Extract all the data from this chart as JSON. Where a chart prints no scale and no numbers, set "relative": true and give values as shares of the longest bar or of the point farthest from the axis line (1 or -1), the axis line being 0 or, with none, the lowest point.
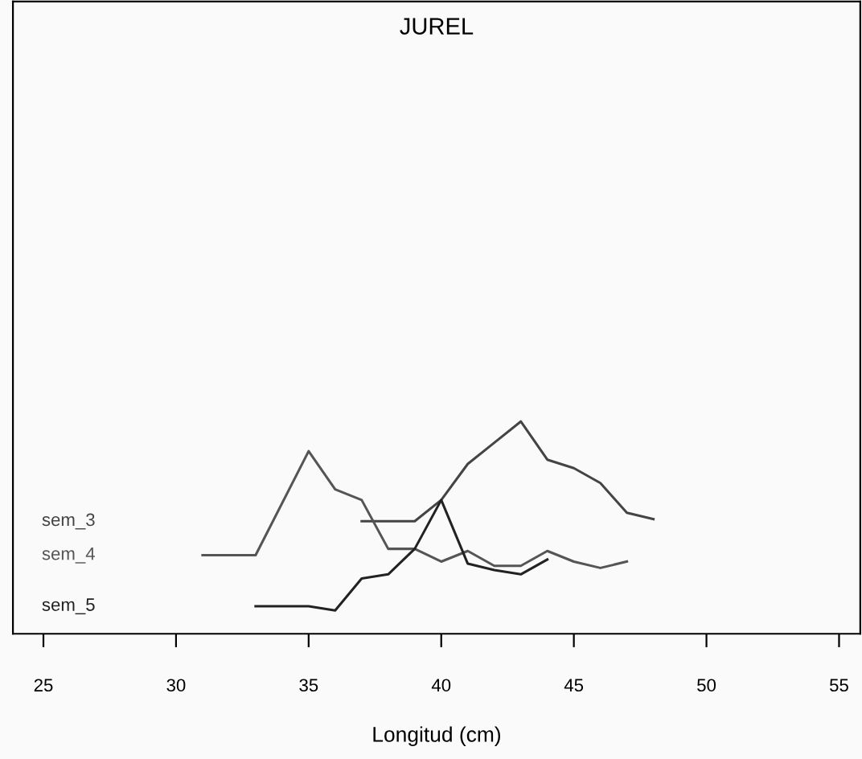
{
  "chart_data": {
    "type": "line",
    "title": "JUREL",
    "xlabel": "Longitud (cm)",
    "relative": true,
    "xlim": [
      23.85,
      55.8
    ],
    "xticks": [
      25,
      30,
      35,
      40,
      45,
      50,
      55
    ],
    "grid": false,
    "legend": false,
    "marker": "none",
    "line_style": "solid",
    "series": [
      {
        "name": "sem_3",
        "color": "#444444",
        "x": [
          37,
          38,
          39,
          40,
          41,
          42,
          43,
          44,
          45,
          46,
          47,
          48
        ],
        "values": [
          0.53,
          0.53,
          0.53,
          0.63,
          0.8,
          0.9,
          1.0,
          0.82,
          0.78,
          0.71,
          0.57,
          0.54
        ]
      },
      {
        "name": "sem_4",
        "color": "#555555",
        "x": [
          31,
          33,
          35,
          36,
          37,
          38,
          39,
          40,
          41,
          42,
          43,
          44,
          45,
          46,
          47
        ],
        "values": [
          0.37,
          0.37,
          0.86,
          0.68,
          0.63,
          0.4,
          0.4,
          0.34,
          0.39,
          0.32,
          0.32,
          0.39,
          0.34,
          0.31,
          0.34
        ]
      },
      {
        "name": "sem_5",
        "color": "#222222",
        "x": [
          33,
          34,
          35,
          36,
          37,
          38,
          39,
          40,
          41,
          42,
          43,
          44
        ],
        "values": [
          0.13,
          0.13,
          0.13,
          0.11,
          0.26,
          0.28,
          0.4,
          0.63,
          0.33,
          0.3,
          0.28,
          0.35
        ]
      }
    ]
  }
}
